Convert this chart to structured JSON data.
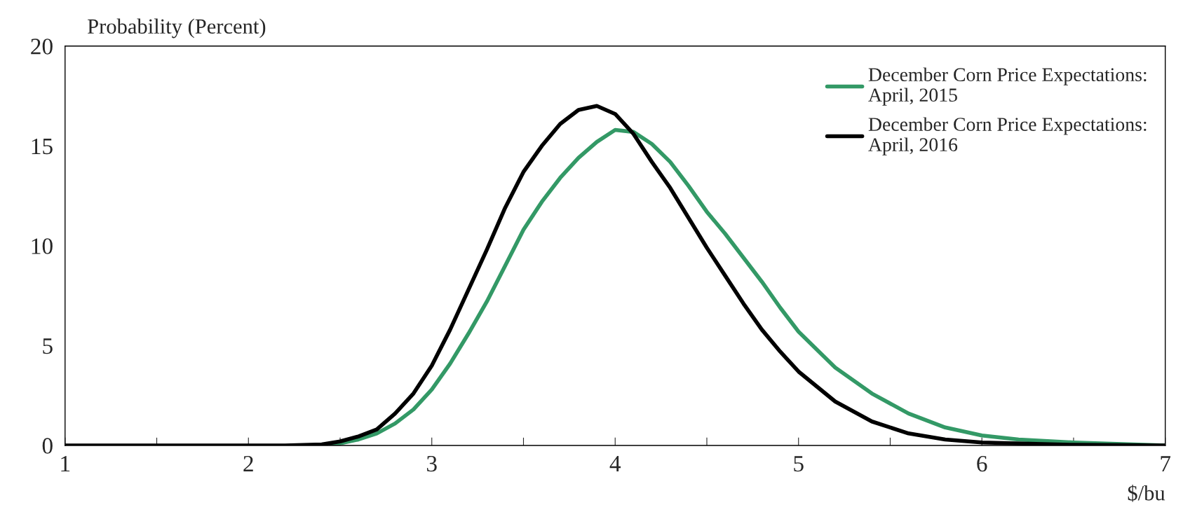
{
  "chart_data": {
    "type": "line",
    "ylabel": "Probability (Percent)",
    "xlabel": "$/bu",
    "xlim": [
      1,
      7
    ],
    "xticks": [
      1,
      {
        "value": 1.5,
        "label": null
      },
      2,
      {
        "value": 2.5,
        "label": null
      },
      3,
      {
        "value": 3.5,
        "label": null
      },
      4,
      {
        "value": 4.5,
        "label": null
      },
      5,
      {
        "value": 5.5,
        "label": null
      },
      6,
      {
        "value": 6.5,
        "label": null
      },
      7
    ],
    "ylim": [
      0,
      20
    ],
    "yticks": [
      0,
      5,
      10,
      15,
      20
    ],
    "grid": false,
    "legend": "top right",
    "marker": "none",
    "line_style": "solid",
    "series": [
      {
        "name": "December Corn Price Expectations:\nApril, 2015",
        "color": "#339966",
        "x": [
          2.45,
          2.5,
          2.6,
          2.7,
          2.8,
          2.9,
          3.0,
          3.1,
          3.2,
          3.3,
          3.4,
          3.5,
          3.6,
          3.7,
          3.8,
          3.9,
          4.0,
          4.1,
          4.2,
          4.3,
          4.4,
          4.5,
          4.6,
          4.7,
          4.8,
          4.9,
          5.0,
          5.2,
          5.4,
          5.6,
          5.8,
          6.0,
          6.2,
          6.5,
          7.0
        ],
        "values": [
          0.05,
          0.1,
          0.3,
          0.6,
          1.1,
          1.8,
          2.8,
          4.1,
          5.6,
          7.2,
          9.0,
          10.8,
          12.2,
          13.4,
          14.4,
          15.2,
          15.8,
          15.7,
          15.1,
          14.2,
          13.0,
          11.7,
          10.6,
          9.4,
          8.2,
          6.9,
          5.7,
          3.9,
          2.6,
          1.6,
          0.9,
          0.5,
          0.3,
          0.15,
          0
        ]
      },
      {
        "name": "December Corn Price Expectations:\nApril, 2016",
        "color": "#000000",
        "x": [
          1,
          1.5,
          2,
          2.2,
          2.4,
          2.5,
          2.6,
          2.7,
          2.8,
          2.9,
          3.0,
          3.1,
          3.2,
          3.3,
          3.4,
          3.5,
          3.6,
          3.7,
          3.8,
          3.9,
          4.0,
          4.1,
          4.2,
          4.3,
          4.4,
          4.5,
          4.6,
          4.7,
          4.8,
          4.9,
          5.0,
          5.2,
          5.4,
          5.6,
          5.8,
          6.0,
          6.5,
          7.0
        ],
        "values": [
          0,
          0,
          0,
          0,
          0.05,
          0.2,
          0.45,
          0.8,
          1.6,
          2.6,
          4.0,
          5.8,
          7.8,
          9.8,
          11.9,
          13.7,
          15.0,
          16.1,
          16.8,
          17.0,
          16.6,
          15.6,
          14.2,
          12.9,
          11.4,
          9.9,
          8.5,
          7.1,
          5.8,
          4.7,
          3.7,
          2.2,
          1.2,
          0.6,
          0.3,
          0.15,
          0.03,
          0
        ]
      }
    ]
  }
}
